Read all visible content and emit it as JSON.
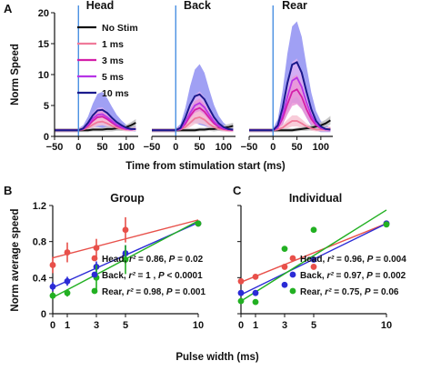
{
  "chart_data": [
    {
      "panel": "A",
      "type": "line",
      "subplots": [
        "Head",
        "Back",
        "Rear"
      ],
      "xlabel": "Time from stimulation start (ms)",
      "ylabel": "Norm Speed",
      "xlim": [
        -50,
        125
      ],
      "ylim": [
        0,
        20
      ],
      "xticks": [
        "−50",
        "0",
        "50",
        "100"
      ],
      "yticks": [
        "0",
        "5",
        "10",
        "15",
        "20"
      ],
      "stimulus_marker_x": 0,
      "legend": [
        "No Stim",
        "1 ms",
        "3 ms",
        "5 ms",
        "10 ms"
      ],
      "series_colors": [
        "#111111",
        "#f07a9a",
        "#d41fa8",
        "#b735e6",
        "#1a1a8c"
      ],
      "band_colors": [
        "#bdbdbd",
        "#f7c3d2",
        "#eb95d6",
        "#ddb0f2",
        "#8f8ff2"
      ],
      "x": [
        -50,
        -40,
        -30,
        -20,
        -10,
        0,
        10,
        20,
        30,
        40,
        50,
        60,
        70,
        80,
        90,
        100,
        110,
        120
      ],
      "panels": [
        {
          "title": "Head",
          "series": [
            {
              "name": "No Stim",
              "values": [
                1.0,
                1.0,
                1.0,
                1.0,
                1.0,
                1.0,
                1.0,
                1.0,
                1.1,
                1.1,
                1.1,
                1.2,
                1.2,
                1.3,
                1.3,
                1.5,
                1.8,
                2.2
              ],
              "sd": [
                0.3,
                0.3,
                0.3,
                0.3,
                0.3,
                0.3,
                0.3,
                0.3,
                0.3,
                0.3,
                0.3,
                0.4,
                0.4,
                0.4,
                0.4,
                0.4,
                0.5,
                0.6
              ]
            },
            {
              "name": "1 ms",
              "values": [
                1.0,
                1.0,
                1.0,
                1.0,
                1.0,
                1.0,
                1.1,
                1.4,
                1.9,
                2.3,
                2.4,
                2.1,
                1.7,
                1.4,
                1.2,
                1.1,
                1.1,
                1.2
              ],
              "sd": [
                0.3,
                0.3,
                0.3,
                0.3,
                0.3,
                0.3,
                0.3,
                0.4,
                0.5,
                0.6,
                0.6,
                0.5,
                0.4,
                0.3,
                0.3,
                0.3,
                0.3,
                0.3
              ]
            },
            {
              "name": "3 ms",
              "values": [
                1.0,
                1.0,
                1.0,
                1.0,
                1.0,
                1.0,
                1.2,
                1.7,
                2.5,
                3.1,
                3.2,
                2.8,
                2.2,
                1.7,
                1.4,
                1.2,
                1.1,
                1.2
              ],
              "sd": [
                0.3,
                0.3,
                0.3,
                0.3,
                0.3,
                0.3,
                0.3,
                0.5,
                0.7,
                0.9,
                0.9,
                0.7,
                0.6,
                0.4,
                0.3,
                0.3,
                0.3,
                0.3
              ]
            },
            {
              "name": "5 ms",
              "values": [
                1.0,
                1.0,
                1.0,
                1.0,
                1.0,
                1.0,
                1.2,
                1.9,
                2.9,
                3.5,
                3.6,
                3.1,
                2.5,
                1.9,
                1.5,
                1.2,
                1.1,
                1.2
              ],
              "sd": [
                0.3,
                0.3,
                0.3,
                0.3,
                0.3,
                0.3,
                0.4,
                0.6,
                0.9,
                1.1,
                1.1,
                0.9,
                0.7,
                0.5,
                0.4,
                0.3,
                0.3,
                0.3
              ]
            },
            {
              "name": "10 ms",
              "values": [
                1.0,
                1.0,
                1.0,
                1.0,
                1.0,
                1.0,
                1.3,
                2.2,
                3.4,
                4.2,
                4.3,
                3.8,
                3.0,
                2.3,
                1.8,
                1.4,
                1.2,
                1.2
              ],
              "sd": [
                0.3,
                0.3,
                0.3,
                0.3,
                0.3,
                0.3,
                0.5,
                1.0,
                1.9,
                2.7,
                2.9,
                2.4,
                1.8,
                1.2,
                0.8,
                0.5,
                0.4,
                0.4
              ]
            }
          ]
        },
        {
          "title": "Back",
          "series": [
            {
              "name": "No Stim",
              "values": [
                1.0,
                1.0,
                1.0,
                1.0,
                1.0,
                1.0,
                1.0,
                1.0,
                1.0,
                1.0,
                1.1,
                1.1,
                1.2,
                1.2,
                1.3,
                1.4,
                1.5,
                1.7
              ],
              "sd": [
                0.3,
                0.3,
                0.3,
                0.3,
                0.3,
                0.3,
                0.3,
                0.3,
                0.3,
                0.3,
                0.3,
                0.3,
                0.3,
                0.4,
                0.4,
                0.4,
                0.5,
                0.5
              ]
            },
            {
              "name": "1 ms",
              "values": [
                1.0,
                1.0,
                1.0,
                1.0,
                1.0,
                1.0,
                1.1,
                1.5,
                2.2,
                2.9,
                3.1,
                2.7,
                2.0,
                1.5,
                1.2,
                1.1,
                1.0,
                1.0
              ],
              "sd": [
                0.3,
                0.3,
                0.3,
                0.3,
                0.3,
                0.3,
                0.3,
                0.5,
                0.7,
                0.9,
                1.0,
                0.8,
                0.6,
                0.4,
                0.3,
                0.3,
                0.3,
                0.3
              ]
            },
            {
              "name": "3 ms",
              "values": [
                1.0,
                1.0,
                1.0,
                1.0,
                1.0,
                1.0,
                1.2,
                2.0,
                3.3,
                4.3,
                4.6,
                4.0,
                3.0,
                2.1,
                1.5,
                1.2,
                1.1,
                1.0
              ],
              "sd": [
                0.3,
                0.3,
                0.3,
                0.3,
                0.3,
                0.3,
                0.4,
                0.7,
                1.1,
                1.4,
                1.5,
                1.3,
                1.0,
                0.7,
                0.5,
                0.3,
                0.3,
                0.3
              ]
            },
            {
              "name": "5 ms",
              "values": [
                1.0,
                1.0,
                1.0,
                1.0,
                1.0,
                1.0,
                1.2,
                2.3,
                3.8,
                5.0,
                5.4,
                4.7,
                3.5,
                2.4,
                1.7,
                1.3,
                1.1,
                1.1
              ],
              "sd": [
                0.3,
                0.3,
                0.3,
                0.3,
                0.3,
                0.3,
                0.4,
                0.8,
                1.3,
                1.7,
                1.9,
                1.6,
                1.2,
                0.8,
                0.5,
                0.4,
                0.3,
                0.3
              ]
            },
            {
              "name": "10 ms",
              "values": [
                1.0,
                1.0,
                1.0,
                1.0,
                1.0,
                1.0,
                1.4,
                3.0,
                5.1,
                6.5,
                6.8,
                6.0,
                4.5,
                3.1,
                2.1,
                1.5,
                1.2,
                1.1
              ],
              "sd": [
                0.3,
                0.3,
                0.3,
                0.3,
                0.3,
                0.3,
                0.6,
                1.6,
                3.0,
                4.3,
                4.9,
                4.3,
                3.1,
                2.0,
                1.2,
                0.7,
                0.4,
                0.3
              ]
            }
          ]
        },
        {
          "title": "Rear",
          "series": [
            {
              "name": "No Stim",
              "values": [
                1.0,
                1.0,
                1.0,
                1.0,
                1.0,
                1.0,
                1.0,
                1.0,
                1.0,
                1.0,
                1.1,
                1.2,
                1.3,
                1.4,
                1.6,
                1.8,
                2.1,
                2.6
              ],
              "sd": [
                0.3,
                0.3,
                0.3,
                0.3,
                0.3,
                0.3,
                0.3,
                0.3,
                0.3,
                0.3,
                0.3,
                0.3,
                0.4,
                0.4,
                0.5,
                0.5,
                0.6,
                0.7
              ]
            },
            {
              "name": "1 ms",
              "values": [
                1.0,
                1.0,
                1.0,
                1.0,
                1.0,
                1.0,
                1.1,
                1.4,
                2.0,
                2.5,
                2.5,
                2.1,
                1.6,
                1.3,
                1.1,
                1.1,
                1.1,
                1.3
              ],
              "sd": [
                0.3,
                0.3,
                0.3,
                0.3,
                0.3,
                0.3,
                0.3,
                0.5,
                0.7,
                0.9,
                0.9,
                0.7,
                0.5,
                0.4,
                0.3,
                0.3,
                0.3,
                0.3
              ]
            },
            {
              "name": "3 ms",
              "values": [
                1.0,
                1.0,
                1.0,
                1.0,
                1.0,
                1.0,
                1.4,
                2.9,
                5.2,
                7.2,
                7.6,
                6.4,
                4.4,
                2.8,
                1.8,
                1.3,
                1.1,
                1.1
              ],
              "sd": [
                0.3,
                0.3,
                0.3,
                0.3,
                0.3,
                0.3,
                0.5,
                1.0,
                1.7,
                2.3,
                2.4,
                2.0,
                1.4,
                0.9,
                0.6,
                0.4,
                0.3,
                0.3
              ]
            },
            {
              "name": "5 ms",
              "values": [
                1.0,
                1.0,
                1.0,
                1.0,
                1.0,
                1.0,
                1.5,
                3.4,
                6.4,
                9.0,
                9.5,
                8.0,
                5.5,
                3.4,
                2.0,
                1.4,
                1.1,
                1.1
              ],
              "sd": [
                0.3,
                0.3,
                0.3,
                0.3,
                0.3,
                0.3,
                0.6,
                1.3,
                2.3,
                3.0,
                3.1,
                2.6,
                1.8,
                1.1,
                0.7,
                0.4,
                0.3,
                0.3
              ]
            },
            {
              "name": "10 ms",
              "values": [
                1.0,
                1.0,
                1.0,
                1.0,
                1.0,
                1.0,
                1.8,
                4.6,
                8.6,
                11.6,
                12.0,
                10.3,
                7.2,
                4.4,
                2.5,
                1.6,
                1.2,
                1.1
              ],
              "sd": [
                0.3,
                0.3,
                0.3,
                0.3,
                0.3,
                0.3,
                1.0,
                2.8,
                4.8,
                6.2,
                6.6,
                5.8,
                4.2,
                2.7,
                1.6,
                0.9,
                0.5,
                0.4
              ]
            }
          ]
        }
      ]
    },
    {
      "panel": "B",
      "type": "scatter",
      "title": "Group",
      "xlabel": "Pulse width (ms)",
      "ylabel": "Norm average speed",
      "xlim": [
        0,
        10
      ],
      "ylim": [
        0,
        1.2
      ],
      "xticks": [
        "0",
        "1",
        "3",
        "5",
        "10"
      ],
      "yticks": [
        "0",
        "0.4",
        "0.8",
        "1.2"
      ],
      "series": [
        {
          "name": "Head",
          "color": "#e8504a",
          "x": [
            0,
            1,
            3,
            5,
            10
          ],
          "y": [
            0.54,
            0.68,
            0.73,
            0.93,
            1.0
          ],
          "err": [
            0.09,
            0.11,
            0.1,
            0.14,
            0
          ],
          "fit": [
            0.62,
            1.04
          ],
          "label": "Head, r² = 0.86, P = 0.02"
        },
        {
          "name": "Back",
          "color": "#2b2bd6",
          "x": [
            0,
            1,
            3,
            5,
            10
          ],
          "y": [
            0.3,
            0.36,
            0.52,
            0.67,
            1.0
          ],
          "err": [
            0.05,
            0.05,
            0.06,
            0.09,
            0
          ],
          "fit": [
            0.29,
            1.01
          ],
          "label": "Back, r² = 1 , P < 0.0001"
        },
        {
          "name": "Rear",
          "color": "#22b022",
          "x": [
            0,
            1,
            3,
            5,
            10
          ],
          "y": [
            0.2,
            0.23,
            0.4,
            0.6,
            1.0
          ],
          "err": [
            0.04,
            0.04,
            0.14,
            0.16,
            0
          ],
          "fit": [
            0.18,
            1.03
          ],
          "label": "Rear, r² = 0.98, P = 0.001"
        }
      ]
    },
    {
      "panel": "C",
      "type": "scatter",
      "title": "Individual",
      "xlabel": "Pulse width (ms)",
      "xlim": [
        0,
        10
      ],
      "ylim": [
        0,
        1.2
      ],
      "xticks": [
        "0",
        "1",
        "3",
        "5",
        "10"
      ],
      "yticks": [
        "0",
        "0.4",
        "0.8",
        "1.2"
      ],
      "series": [
        {
          "name": "Head",
          "color": "#e8504a",
          "x": [
            0,
            1,
            3,
            5,
            10
          ],
          "y": [
            0.36,
            0.41,
            0.52,
            0.52,
            1.0
          ],
          "fit": [
            0.35,
            1.0
          ],
          "label": "Head, r² = 0.96, P = 0.004"
        },
        {
          "name": "Back",
          "color": "#2b2bd6",
          "x": [
            0,
            1,
            3,
            5,
            10
          ],
          "y": [
            0.23,
            0.23,
            0.32,
            0.6,
            1.0
          ],
          "fit": [
            0.21,
            1.0
          ],
          "label": "Back, r² = 0.97, P = 0.002"
        },
        {
          "name": "Rear",
          "color": "#22b022",
          "x": [
            0,
            1,
            3,
            5,
            10
          ],
          "y": [
            0.14,
            0.13,
            0.72,
            0.93,
            0.99
          ],
          "fit": [
            0.14,
            1.15
          ],
          "label": "Rear, r² = 0.75, P = 0.06"
        }
      ]
    }
  ]
}
